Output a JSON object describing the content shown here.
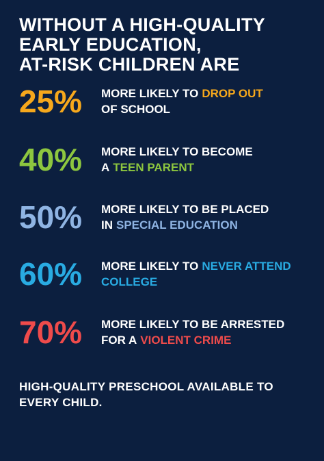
{
  "title": [
    "WITHOUT A HIGH-QUALITY",
    "EARLY EDUCATION,",
    "AT-RISK CHILDREN ARE"
  ],
  "items": [
    {
      "stat": "25%",
      "color": "#f6a81c",
      "lines": [
        [
          {
            "text": "MORE LIKELY TO"
          },
          {
            "text": "DROP OUT",
            "accent": true
          }
        ],
        [
          {
            "text": "OF SCHOOL"
          }
        ]
      ]
    },
    {
      "stat": "40%",
      "color": "#8dc63f",
      "lines": [
        [
          {
            "text": "MORE LIKELY TO BECOME"
          }
        ],
        [
          {
            "text": "A"
          },
          {
            "text": "TEEN PARENT",
            "accent": true
          }
        ]
      ]
    },
    {
      "stat": "50%",
      "color": "#8fb4e3",
      "lines": [
        [
          {
            "text": "MORE LIKELY TO BE PLACED"
          }
        ],
        [
          {
            "text": "IN"
          },
          {
            "text": "SPECIAL EDUCATION",
            "accent": true
          }
        ]
      ]
    },
    {
      "stat": "60%",
      "color": "#29abe2",
      "lines": [
        [
          {
            "text": "MORE LIKELY TO"
          },
          {
            "text": "NEVER ATTEND",
            "accent": true
          }
        ],
        [
          {
            "text": "COLLEGE",
            "accent": true
          }
        ]
      ]
    },
    {
      "stat": "70%",
      "color": "#ef4b4b",
      "lines": [
        [
          {
            "text": "MORE LIKELY TO BE ARRESTED"
          }
        ],
        [
          {
            "text": "FOR A"
          },
          {
            "text": "VIOLENT CRIME",
            "accent": true
          }
        ]
      ]
    }
  ],
  "footer": [
    "HIGH-QUALITY PRESCHOOL AVAILABLE TO",
    "EVERY CHILD."
  ]
}
